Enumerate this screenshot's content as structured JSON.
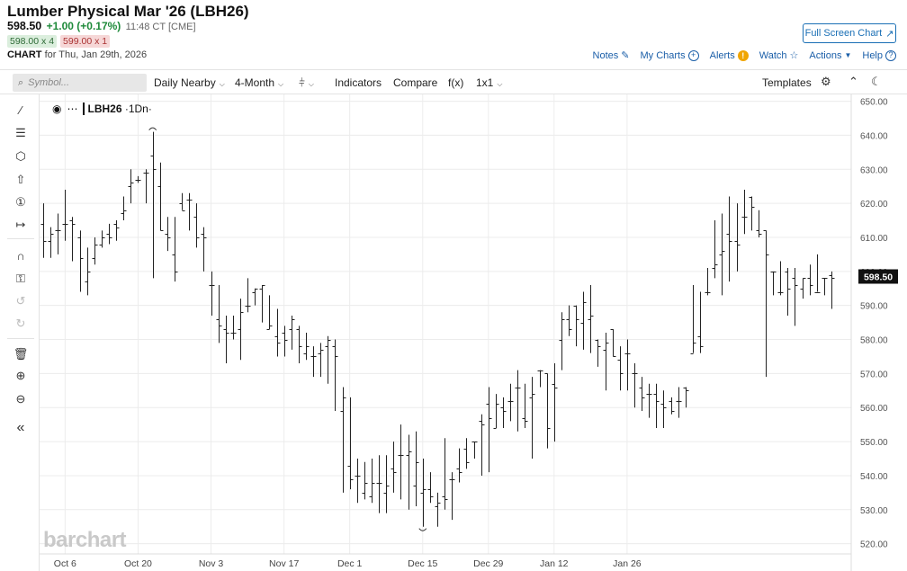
{
  "header": {
    "title": "Lumber Physical Mar '26 (LBH26)",
    "last": "598.50",
    "change": "+1.00 (+0.17%)",
    "time": "11:48 CT [CME]",
    "bid": "598.00 x 4",
    "ask": "599.00 x 1",
    "chart_label": "CHART",
    "chart_for": "for Thu, Jan 29th, 2026",
    "fullscreen": "Full Screen Chart"
  },
  "links": {
    "notes": "Notes",
    "mycharts": "My Charts",
    "alerts": "Alerts",
    "watch": "Watch",
    "actions": "Actions",
    "help": "Help"
  },
  "toolbar": {
    "search_placeholder": "Symbol...",
    "interval": "Daily Nearby",
    "range": "4-Month",
    "indicators": "Indicators",
    "compare": "Compare",
    "fx": "f(x)",
    "layout": "1x1",
    "templates": "Templates"
  },
  "sidebar": {
    "tools": [
      "line-tool-icon",
      "fib-tool-icon",
      "shape-tool-icon",
      "arrow-tool-icon",
      "number-tool-icon",
      "measure-tool-icon",
      "magnet-icon",
      "lock-icon",
      "undo-icon",
      "redo-icon",
      "trash-icon",
      "zoom-in-icon",
      "zoom-out-icon",
      "collapse-icon"
    ]
  },
  "colors": {
    "accent": "#1a6fb5",
    "up": "#1e8a3a",
    "down": "#cc3333",
    "bar": "#222222",
    "price_marker_bg": "#111111"
  },
  "chart_data": {
    "type": "ohlc",
    "symbol_label": "LBH26",
    "period_label": "1Dn",
    "watermark": "barchart",
    "ylim": [
      517,
      652
    ],
    "y_ticks": [
      520,
      530,
      540,
      550,
      560,
      570,
      580,
      590,
      600,
      610,
      620,
      630,
      640,
      650
    ],
    "y_tick_labels": [
      "520.00",
      "530.00",
      "540.00",
      "550.00",
      "560.00",
      "570.00",
      "580.00",
      "590.00",
      "600.00",
      "610.00",
      "620.00",
      "630.00",
      "640.00",
      "650.00"
    ],
    "x_ticks": [
      {
        "i": 3,
        "label": "Oct 6"
      },
      {
        "i": 13,
        "label": "Oct 20"
      },
      {
        "i": 23,
        "label": "Nov 3"
      },
      {
        "i": 33,
        "label": "Nov 17"
      },
      {
        "i": 42,
        "label": "Dec 1"
      },
      {
        "i": 52,
        "label": "Dec 15"
      },
      {
        "i": 61,
        "label": "Dec 29"
      },
      {
        "i": 70,
        "label": "Jan 12"
      },
      {
        "i": 80,
        "label": "Jan 26"
      }
    ],
    "last_price": 598.5,
    "last_price_label": "598.50",
    "grid": true,
    "annotations": [
      "high-marker",
      "low-marker"
    ],
    "bars": [
      [
        614,
        620,
        604,
        609
      ],
      [
        609,
        613,
        604,
        611
      ],
      [
        612,
        617,
        605,
        612
      ],
      [
        614,
        624,
        609,
        614
      ],
      [
        615,
        616,
        603,
        614
      ],
      [
        610,
        612,
        594,
        604
      ],
      [
        597,
        607,
        593,
        600
      ],
      [
        604,
        610,
        602,
        608
      ],
      [
        608,
        612,
        607,
        610
      ],
      [
        611,
        614,
        608,
        610
      ],
      [
        614,
        615,
        609,
        613
      ],
      [
        617,
        622,
        615,
        618
      ],
      [
        625,
        630,
        620,
        626
      ],
      [
        627,
        628,
        626,
        627
      ],
      [
        629,
        630,
        620,
        629
      ],
      [
        634,
        641,
        598,
        630
      ],
      [
        625,
        632,
        612,
        612
      ],
      [
        611,
        616,
        606,
        610
      ],
      [
        605,
        616,
        597,
        600
      ],
      [
        620,
        623,
        618,
        618
      ],
      [
        621,
        623,
        612,
        621
      ],
      [
        616,
        620,
        607,
        610
      ],
      [
        611,
        613,
        600,
        610
      ],
      [
        596,
        600,
        587,
        596
      ],
      [
        586,
        596,
        579,
        584
      ],
      [
        583,
        587,
        573,
        582
      ],
      [
        582,
        587,
        580,
        582
      ],
      [
        583,
        592,
        574,
        588
      ],
      [
        590,
        598,
        588,
        590
      ],
      [
        594,
        595,
        590,
        595
      ],
      [
        595,
        596,
        585,
        596
      ],
      [
        583,
        593,
        583,
        584
      ],
      [
        581,
        589,
        575,
        579
      ],
      [
        582,
        584,
        575,
        580
      ],
      [
        583,
        587,
        577,
        586
      ],
      [
        583,
        584,
        573,
        578
      ],
      [
        576,
        582,
        574,
        578
      ],
      [
        575,
        578,
        569,
        575
      ],
      [
        576,
        579,
        569,
        577
      ],
      [
        578,
        581,
        567,
        580
      ],
      [
        578,
        580,
        559,
        575
      ],
      [
        559,
        566,
        535,
        563
      ],
      [
        543,
        563,
        536,
        539
      ],
      [
        540,
        545,
        532,
        540
      ],
      [
        535,
        544,
        533,
        538
      ],
      [
        534,
        545,
        532,
        538
      ],
      [
        538,
        546,
        529,
        538
      ],
      [
        535,
        546,
        529,
        537
      ],
      [
        542,
        550,
        535,
        541
      ],
      [
        546,
        555,
        533,
        546
      ],
      [
        546,
        552,
        530,
        547
      ],
      [
        537,
        553,
        531,
        544
      ],
      [
        535,
        545,
        525,
        536
      ],
      [
        536,
        541,
        532,
        534
      ],
      [
        531,
        535,
        525,
        532
      ],
      [
        534,
        551,
        530,
        533
      ],
      [
        539,
        541,
        527,
        539
      ],
      [
        542,
        548,
        538,
        541
      ],
      [
        548,
        551,
        542,
        544
      ],
      [
        550,
        550,
        545,
        550
      ],
      [
        556,
        558,
        540,
        555
      ],
      [
        561,
        566,
        541,
        557
      ],
      [
        554,
        564,
        554,
        561
      ],
      [
        560,
        563,
        554,
        559
      ]
    ],
    "bars_continued": [
      [
        562,
        567,
        556,
        562
      ],
      [
        566,
        571,
        553,
        566
      ],
      [
        557,
        567,
        554,
        556
      ],
      [
        563,
        569,
        545,
        564
      ],
      [
        571,
        571,
        566,
        571
      ],
      [
        570,
        570,
        548,
        554
      ],
      [
        567,
        573,
        550,
        566
      ],
      [
        580,
        588,
        571,
        586
      ],
      [
        586,
        590,
        581,
        583
      ],
      [
        590,
        590,
        578,
        586
      ],
      [
        585,
        594,
        577,
        591
      ],
      [
        586,
        596,
        576,
        587
      ],
      [
        580,
        580,
        572,
        578
      ],
      [
        577,
        582,
        565,
        579
      ],
      [
        583,
        580,
        575,
        575
      ],
      [
        574,
        578,
        565,
        570
      ],
      [
        576,
        580,
        565,
        576
      ],
      [
        570,
        573,
        560,
        570
      ],
      [
        566,
        569,
        559,
        563
      ],
      [
        564,
        567,
        557,
        564
      ],
      [
        564,
        567,
        554,
        562
      ],
      [
        561,
        565,
        554,
        560
      ],
      [
        562,
        563,
        558,
        559
      ],
      [
        562,
        566,
        557,
        562
      ],
      [
        566,
        566,
        560,
        565
      ],
      [
        576,
        596,
        578,
        579
      ],
      [
        581,
        594,
        576,
        578
      ],
      [
        594,
        601,
        593,
        594
      ],
      [
        601,
        615,
        598,
        602
      ],
      [
        605,
        617,
        593,
        606
      ],
      [
        611,
        622,
        597,
        609
      ],
      [
        609,
        620,
        600,
        608
      ],
      [
        616,
        624,
        611,
        616
      ],
      [
        622,
        621,
        612,
        619
      ],
      [
        612,
        618,
        610,
        611
      ],
      [
        612,
        608,
        569,
        605
      ],
      [
        600,
        599,
        593,
        600
      ],
      [
        594,
        603,
        593,
        594
      ],
      [
        600,
        601,
        587,
        595
      ],
      [
        598,
        601,
        584,
        596
      ],
      [
        595,
        598,
        592,
        598
      ],
      [
        598,
        602,
        593,
        596
      ],
      [
        594,
        605,
        594,
        594
      ],
      [
        598,
        598,
        593,
        598
      ],
      [
        599,
        600,
        589,
        598
      ]
    ]
  }
}
